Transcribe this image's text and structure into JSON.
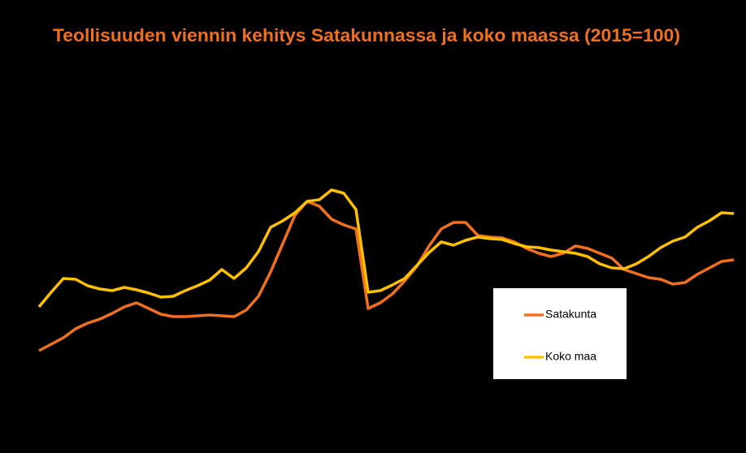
{
  "chart_data": {
    "type": "line",
    "title": "Teollisuuden viennin kehitys Satakunnassa ja koko maassa (2015=100)",
    "legend": "lower right",
    "series": [
      {
        "name": "Satakunta",
        "color": "#f07020",
        "values": [
          59.2,
          62.4,
          65.6,
          70,
          72.8,
          74.8,
          77.6,
          80.8,
          82.8,
          80,
          77.2,
          76,
          76,
          76.4,
          76.8,
          76.4,
          76,
          79.2,
          86,
          98,
          112,
          126,
          132.8,
          130.4,
          124,
          121.2,
          119.2,
          80,
          82.8,
          87.2,
          93.6,
          100.8,
          110.8,
          119.2,
          122.4,
          122.4,
          116,
          115.2,
          114.8,
          112.8,
          109.6,
          107.2,
          105.6,
          107.2,
          110.8,
          109.6,
          107.2,
          104.8,
          99.2,
          97.2,
          95.2,
          94.4,
          92,
          92.8,
          96.8,
          100,
          103.2,
          104
        ]
      },
      {
        "name": "Koko maa",
        "color": "#ffc000",
        "values": [
          80.8,
          88,
          94.8,
          94.4,
          91.2,
          89.6,
          88.8,
          90.4,
          89.2,
          87.6,
          85.6,
          86,
          88.8,
          91.2,
          94,
          99.2,
          94.8,
          100,
          108,
          120,
          123.2,
          127.2,
          132.8,
          133.6,
          138.4,
          136.8,
          128.8,
          88,
          88.8,
          91.6,
          94.8,
          101.2,
          107.6,
          112.8,
          111.2,
          113.6,
          115.2,
          114.4,
          114,
          112,
          110.4,
          110,
          108.8,
          108,
          107.2,
          105.6,
          102,
          100,
          99.6,
          102,
          105.6,
          110,
          113.2,
          115.2,
          120,
          123.2,
          127.2,
          126.8
        ]
      }
    ]
  }
}
